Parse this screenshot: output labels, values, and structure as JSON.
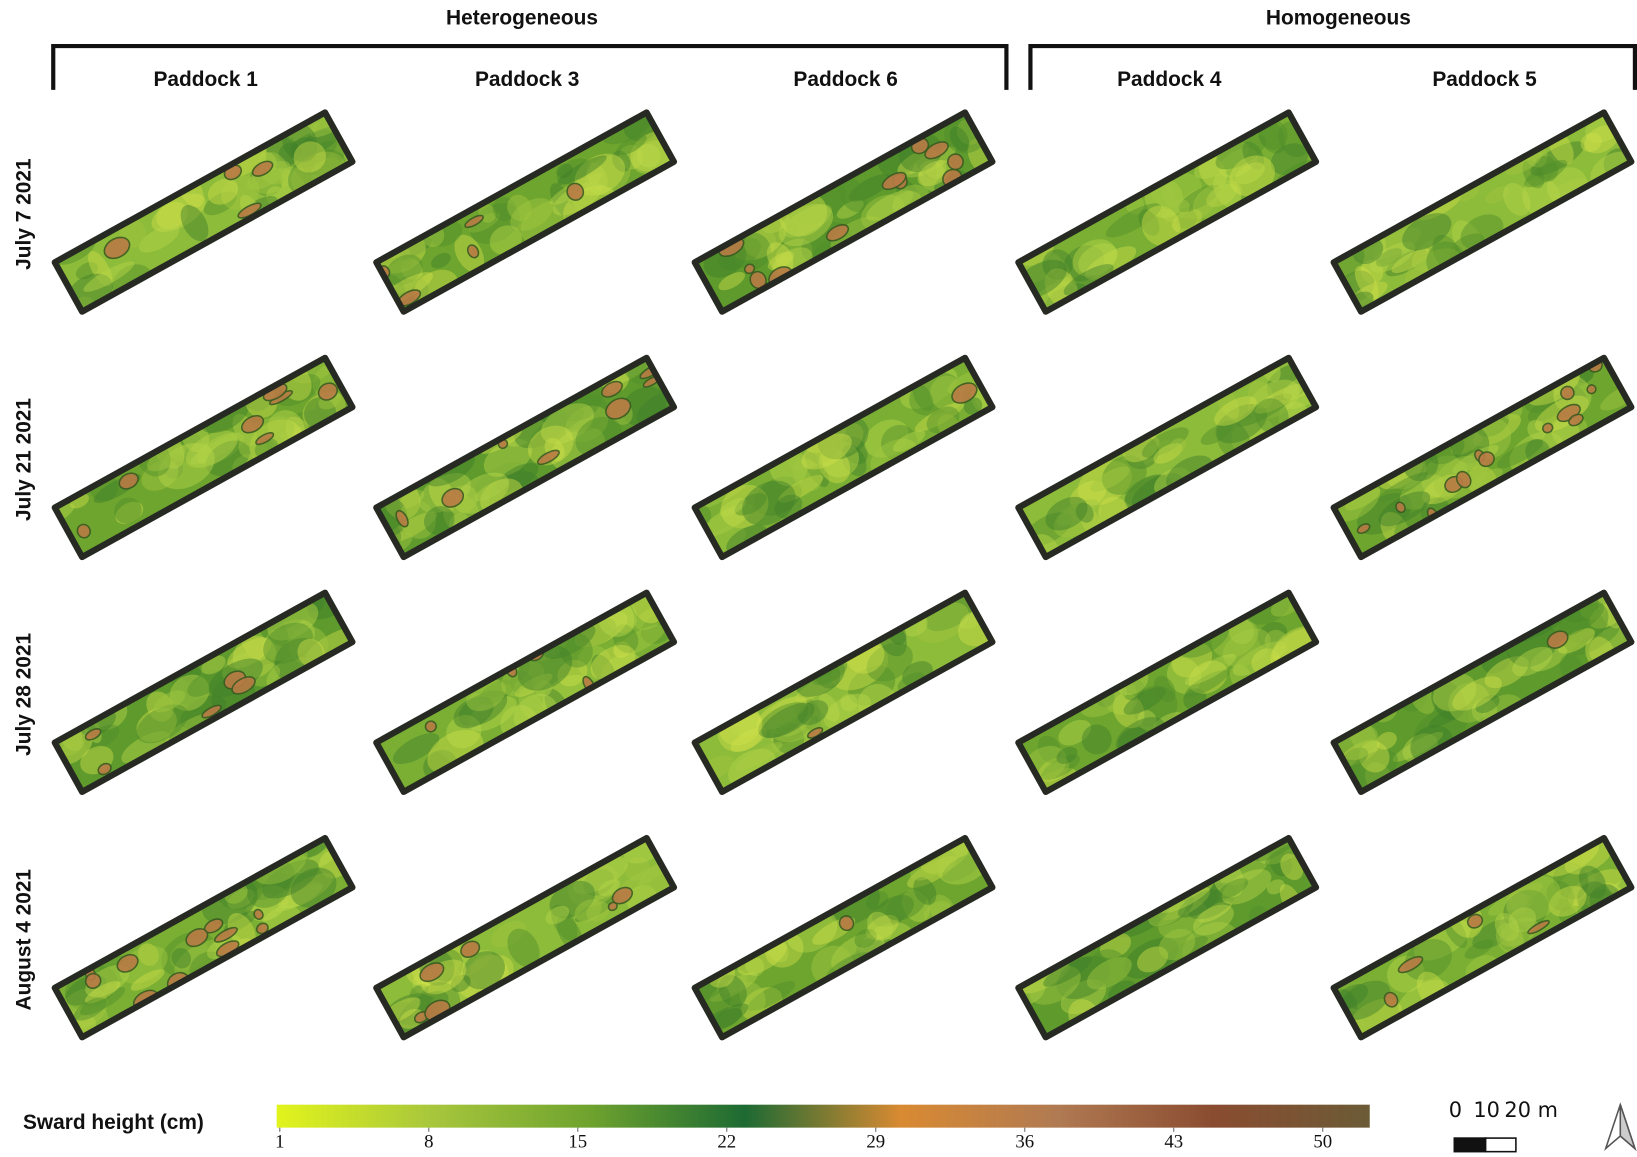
{
  "groups": [
    {
      "label": "Heterogeneous",
      "paddocks": [
        "Paddock 1",
        "Paddock 3",
        "Paddock 6"
      ]
    },
    {
      "label": "Homogeneous",
      "paddocks": [
        "Paddock 4",
        "Paddock 5"
      ]
    }
  ],
  "dates": [
    "July 7 2021",
    "July 21 2021",
    "July 28 2021",
    "August 4 2021"
  ],
  "legend": {
    "title": "Sward height (cm)",
    "ticks": [
      1,
      8,
      15,
      22,
      29,
      36,
      43,
      50
    ],
    "colors": [
      "#e2f41c",
      "#a7c63c",
      "#6fa32e",
      "#1d6a33",
      "#d98a32",
      "#b07a52",
      "#8a4c30",
      "#6b5b36"
    ]
  },
  "scale_bar": {
    "labels": [
      "0",
      "10",
      "20 m"
    ]
  }
}
